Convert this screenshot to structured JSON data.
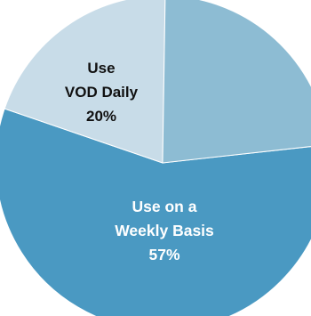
{
  "chart_data": {
    "type": "pie",
    "title": "",
    "slices": [
      {
        "label_lines": [
          "Use on a",
          "Weekly Basis"
        ],
        "percent_label": "57%",
        "value": 57,
        "color": "#4a99c2",
        "text_color": "#ffffff"
      },
      {
        "label_lines": [
          "Use",
          "VOD Daily"
        ],
        "percent_label": "20%",
        "value": 20,
        "color": "#c8dce8",
        "text_color": "#111111"
      },
      {
        "label_lines": [],
        "percent_label": "",
        "value": 23,
        "color": "#8dbcd3",
        "text_color": "#111111"
      }
    ]
  }
}
